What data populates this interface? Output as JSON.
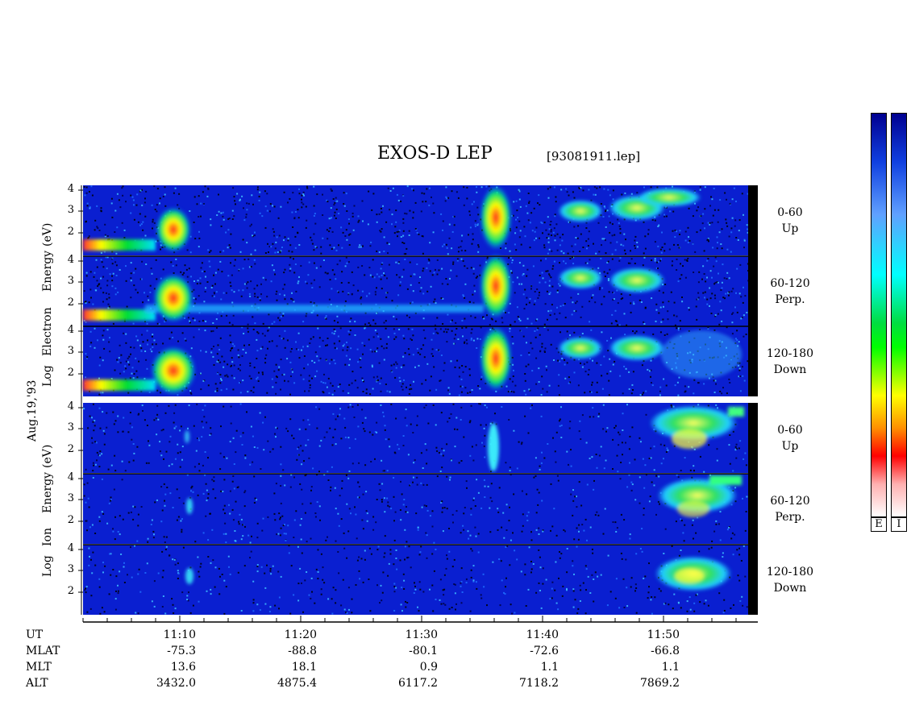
{
  "title": "EXOS-D LEP",
  "filename": "[93081911.lep]",
  "date_label": "Aug.19,'93",
  "electron_axis_words": [
    "Log",
    "Electron",
    "Energy",
    "(eV)"
  ],
  "ion_axis_words": [
    "Log",
    "Ion",
    "Energy",
    "(eV)"
  ],
  "y_ticks": [
    "4",
    "3",
    "2"
  ],
  "channels": [
    {
      "range": "0-60",
      "dir": "Up"
    },
    {
      "range": "60-120",
      "dir": "Perp."
    },
    {
      "range": "120-180",
      "dir": "Down"
    },
    {
      "range": "0-60",
      "dir": "Up"
    },
    {
      "range": "60-120",
      "dir": "Perp."
    },
    {
      "range": "120-180",
      "dir": "Down"
    }
  ],
  "ephemeris": {
    "labels": [
      "UT",
      "MLAT",
      "MLT",
      "ALT"
    ],
    "columns": [
      {
        "UT": "11:10",
        "MLAT": "-75.3",
        "MLT": "13.6",
        "ALT": "3432.0"
      },
      {
        "UT": "11:20",
        "MLAT": "-88.8",
        "MLT": "18.1",
        "ALT": "4875.4"
      },
      {
        "UT": "11:30",
        "MLAT": "-80.1",
        "MLT": "0.9",
        "ALT": "6117.2"
      },
      {
        "UT": "11:40",
        "MLAT": "-72.6",
        "MLT": "1.1",
        "ALT": "7118.2"
      },
      {
        "UT": "11:50",
        "MLAT": "-66.8",
        "MLT": "1.1",
        "ALT": "7869.2"
      }
    ]
  },
  "colorbar_labels": [
    "E",
    "I"
  ],
  "colors": {
    "background": "#0a1fd0",
    "colormap": [
      "#ffffff",
      "#ffb0b0",
      "#ff0000",
      "#ff8800",
      "#ffff00",
      "#00cc00",
      "#00ffff",
      "#0000ff",
      "#000080"
    ]
  },
  "chart_data": {
    "type": "heatmap",
    "title": "EXOS-D LEP",
    "xlabel": "UT",
    "ylabel": "Log Energy (eV)",
    "ylim": [
      1,
      4.2
    ],
    "x_ticks": [
      "11:10",
      "11:20",
      "11:30",
      "11:40",
      "11:50"
    ],
    "panels": [
      {
        "species": "Electron",
        "pitch_angle": "0-60",
        "direction": "Up"
      },
      {
        "species": "Electron",
        "pitch_angle": "60-120",
        "direction": "Perp."
      },
      {
        "species": "Electron",
        "pitch_angle": "120-180",
        "direction": "Down"
      },
      {
        "species": "Ion",
        "pitch_angle": "0-60",
        "direction": "Up"
      },
      {
        "species": "Ion",
        "pitch_angle": "60-120",
        "direction": "Perp."
      },
      {
        "species": "Ion",
        "pitch_angle": "120-180",
        "direction": "Down"
      }
    ]
  }
}
